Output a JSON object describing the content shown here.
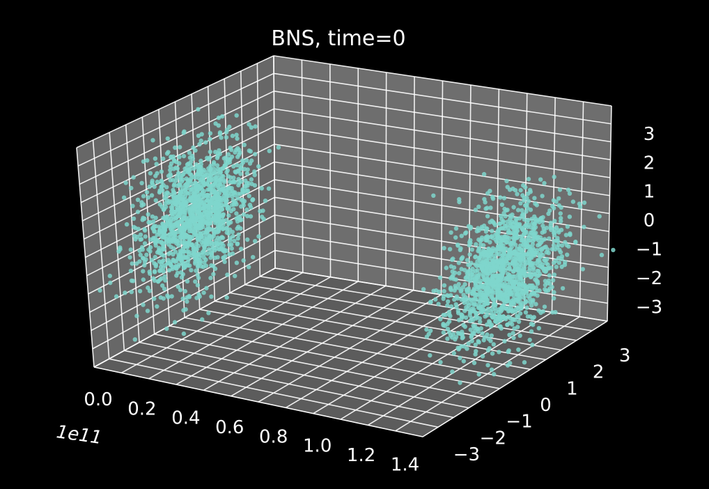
{
  "chart_data": {
    "type": "scatter",
    "projection": "3d",
    "title": "BNS, time=0",
    "background": "#000000",
    "pane_color": "#666666",
    "grid": true,
    "point_color": "#7fd6cc",
    "x_offset_label": "1e11",
    "x_ticks": [
      "0.0",
      "0.2",
      "0.4",
      "0.6",
      "0.8",
      "1.0",
      "1.2",
      "1.4"
    ],
    "y_ticks": [
      "−3",
      "−2",
      "−1",
      "0",
      "1",
      "2",
      "3"
    ],
    "z_ticks": [
      "−3",
      "−2",
      "−1",
      "0",
      "1",
      "2",
      "3"
    ],
    "xlim": [
      0,
      1.5
    ],
    "ylim": [
      -3.5,
      3.5
    ],
    "zlim": [
      -3.5,
      3.5
    ],
    "clusters": [
      {
        "center": [
          0.05,
          0.0,
          0.0
        ],
        "spread": [
          0.04,
          1.0,
          1.1
        ],
        "count": 1400
      },
      {
        "center": [
          1.45,
          0.0,
          0.0
        ],
        "spread": [
          0.04,
          1.0,
          1.1
        ],
        "count": 1400
      }
    ]
  }
}
